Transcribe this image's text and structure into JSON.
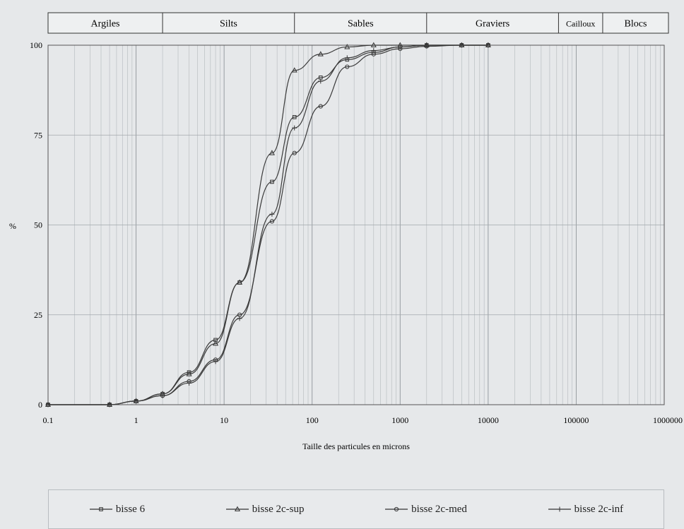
{
  "chart_data": {
    "type": "line",
    "xlabel": "Taille des particules en microns",
    "ylabel": "%",
    "xscale": "log",
    "xlim": [
      0.1,
      1000000
    ],
    "ylim": [
      0,
      100
    ],
    "x_ticks": [
      "0.1",
      "1",
      "10",
      "100",
      "1000",
      "10000",
      "100000",
      "1000000"
    ],
    "y_ticks": [
      "0",
      "25",
      "50",
      "75",
      "100"
    ],
    "grid": true,
    "legend_position": "bottom",
    "size_classes": [
      {
        "label": "Argiles",
        "from": 0.1,
        "to": 2
      },
      {
        "label": "Silts",
        "from": 2,
        "to": 63
      },
      {
        "label": "Sables",
        "from": 63,
        "to": 2000
      },
      {
        "label": "Graviers",
        "from": 2000,
        "to": 63000
      },
      {
        "label": "Cailloux",
        "from": 63000,
        "to": 200000
      },
      {
        "label": "Blocs",
        "from": 200000,
        "to": 1000000
      }
    ],
    "series": [
      {
        "name": "bisse 6",
        "marker": "square",
        "x": [
          0.1,
          0.5,
          1,
          2,
          4,
          8,
          15,
          35,
          63,
          125,
          250,
          500,
          1000,
          2000,
          5000,
          10000
        ],
        "y": [
          0,
          0,
          1,
          3,
          9,
          18,
          34,
          62,
          80,
          91,
          96,
          98,
          99.5,
          100,
          100,
          100
        ]
      },
      {
        "name": "bisse 2c-sup",
        "marker": "triangle",
        "x": [
          0.1,
          0.5,
          1,
          2,
          4,
          8,
          15,
          35,
          63,
          125,
          250,
          500,
          1000,
          2000,
          5000,
          10000
        ],
        "y": [
          0,
          0,
          1,
          3,
          8.5,
          17,
          34,
          70,
          93,
          97.5,
          99.5,
          100,
          100,
          100,
          100,
          100
        ]
      },
      {
        "name": "bisse 2c-med",
        "marker": "circle",
        "x": [
          0.1,
          0.5,
          1,
          2,
          4,
          8,
          15,
          35,
          63,
          125,
          250,
          500,
          1000,
          2000,
          5000,
          10000
        ],
        "y": [
          0,
          0,
          1,
          2.5,
          6.5,
          12.5,
          25,
          51,
          70,
          83,
          94,
          97.5,
          99,
          99.7,
          100,
          100
        ]
      },
      {
        "name": "bisse 2c-inf",
        "marker": "plus",
        "x": [
          0.1,
          0.5,
          1,
          2,
          4,
          8,
          15,
          35,
          63,
          125,
          250,
          500,
          1000,
          2000,
          5000,
          10000
        ],
        "y": [
          0,
          0,
          1,
          2.5,
          6,
          12,
          24,
          53,
          77,
          90,
          96.5,
          98.5,
          99.5,
          100,
          100,
          100
        ]
      }
    ]
  }
}
